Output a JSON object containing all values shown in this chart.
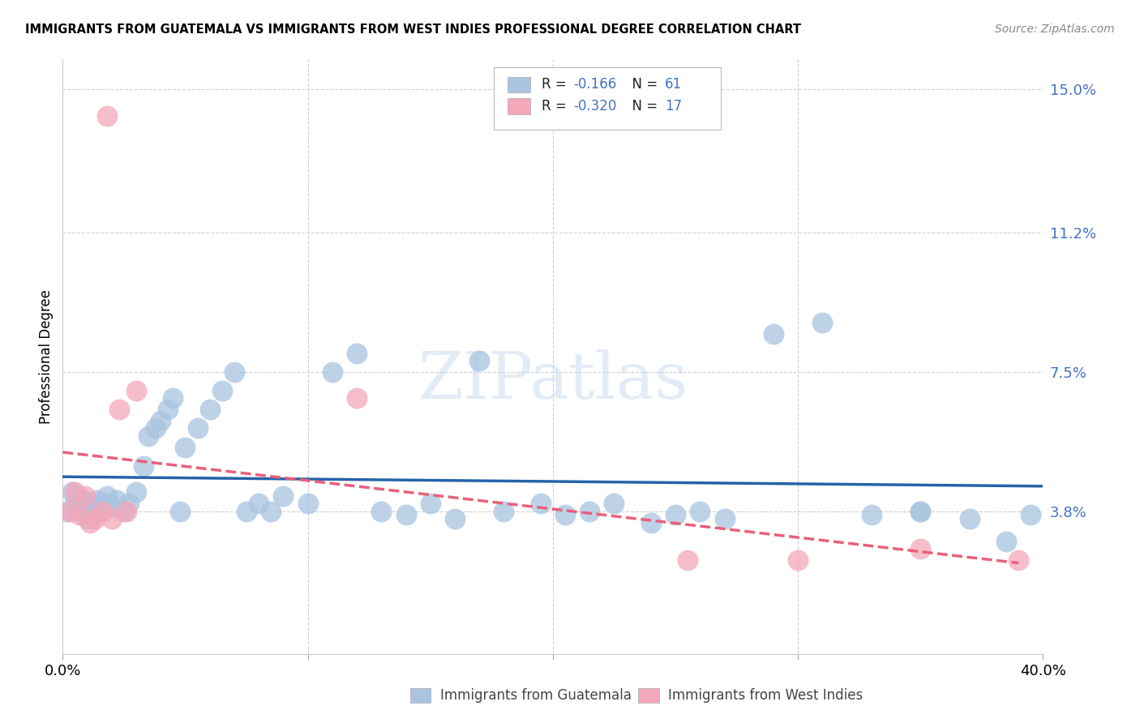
{
  "title": "IMMIGRANTS FROM GUATEMALA VS IMMIGRANTS FROM WEST INDIES PROFESSIONAL DEGREE CORRELATION CHART",
  "source": "Source: ZipAtlas.com",
  "ylabel": "Professional Degree",
  "xlabel_legend1": "Immigrants from Guatemala",
  "xlabel_legend2": "Immigrants from West Indies",
  "xmin": 0.0,
  "xmax": 0.4,
  "ymin": 0.0,
  "ymax": 0.158,
  "yticks": [
    0.038,
    0.075,
    0.112,
    0.15
  ],
  "ytick_labels": [
    "3.8%",
    "7.5%",
    "11.2%",
    "15.0%"
  ],
  "r1": -0.166,
  "n1": 61,
  "r2": -0.32,
  "n2": 17,
  "color_blue": "#a8c4e0",
  "color_pink": "#f4a7b9",
  "line_color_blue": "#2563a8",
  "line_color_pink": "#e8607a",
  "blue_x": [
    0.002,
    0.004,
    0.005,
    0.006,
    0.007,
    0.008,
    0.009,
    0.01,
    0.011,
    0.012,
    0.013,
    0.014,
    0.015,
    0.016,
    0.018,
    0.02,
    0.022,
    0.025,
    0.027,
    0.03,
    0.033,
    0.035,
    0.038,
    0.04,
    0.043,
    0.045,
    0.048,
    0.05,
    0.055,
    0.06,
    0.065,
    0.07,
    0.075,
    0.08,
    0.085,
    0.09,
    0.1,
    0.11,
    0.12,
    0.13,
    0.14,
    0.15,
    0.16,
    0.17,
    0.18,
    0.195,
    0.205,
    0.215,
    0.225,
    0.24,
    0.25,
    0.26,
    0.27,
    0.29,
    0.31,
    0.33,
    0.35,
    0.37,
    0.385,
    0.395,
    0.35
  ],
  "blue_y": [
    0.038,
    0.043,
    0.04,
    0.042,
    0.038,
    0.041,
    0.04,
    0.036,
    0.039,
    0.037,
    0.04,
    0.041,
    0.038,
    0.04,
    0.042,
    0.039,
    0.041,
    0.038,
    0.04,
    0.043,
    0.05,
    0.058,
    0.06,
    0.062,
    0.065,
    0.068,
    0.038,
    0.055,
    0.06,
    0.065,
    0.07,
    0.075,
    0.038,
    0.04,
    0.038,
    0.042,
    0.04,
    0.075,
    0.08,
    0.038,
    0.037,
    0.04,
    0.036,
    0.078,
    0.038,
    0.04,
    0.037,
    0.038,
    0.04,
    0.035,
    0.037,
    0.038,
    0.036,
    0.085,
    0.088,
    0.037,
    0.038,
    0.036,
    0.03,
    0.037,
    0.038
  ],
  "pink_x": [
    0.003,
    0.005,
    0.007,
    0.009,
    0.011,
    0.013,
    0.016,
    0.018,
    0.02,
    0.023,
    0.026,
    0.03,
    0.12,
    0.255,
    0.3,
    0.35,
    0.39
  ],
  "pink_y": [
    0.038,
    0.043,
    0.037,
    0.042,
    0.035,
    0.036,
    0.038,
    0.143,
    0.036,
    0.065,
    0.038,
    0.07,
    0.068,
    0.025,
    0.025,
    0.028,
    0.025
  ],
  "blue_line_x": [
    0.0,
    0.4
  ],
  "blue_line_y": [
    0.044,
    0.03
  ],
  "pink_line_x": [
    0.0,
    0.39
  ],
  "pink_line_y": [
    0.048,
    0.02
  ]
}
